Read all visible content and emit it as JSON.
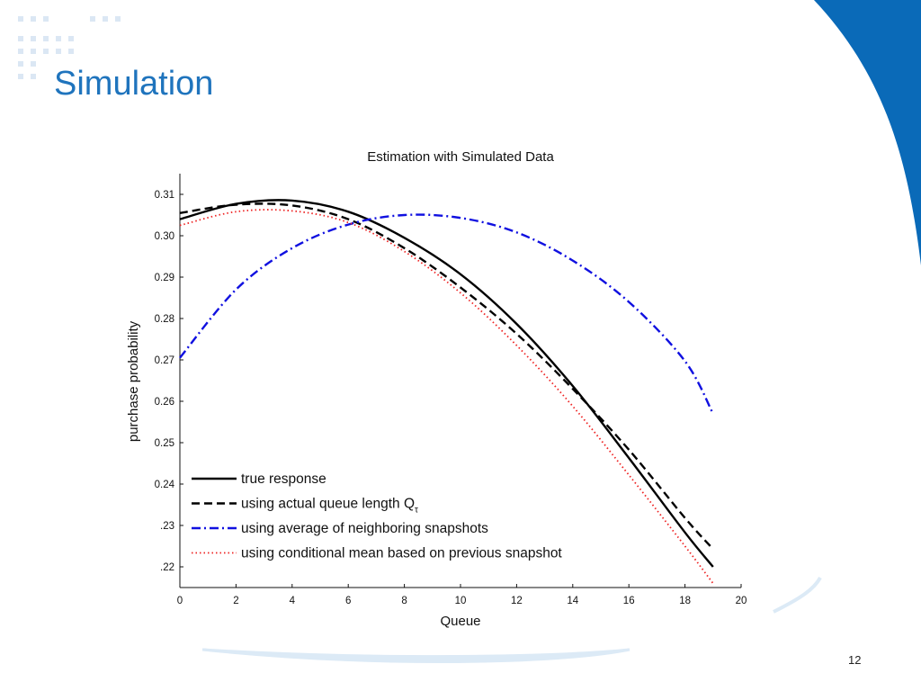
{
  "slide": {
    "title": "Simulation",
    "page_number": "12",
    "accent_color": "#1f74bd",
    "wave_color": "#0a6ab8"
  },
  "chart_data": {
    "type": "line",
    "title": "Estimation with Simulated Data",
    "xlabel": "Queue",
    "ylabel": "purchase probability",
    "xlim": [
      0,
      20
    ],
    "ylim": [
      0.215,
      0.315
    ],
    "xticks": [
      0,
      2,
      4,
      6,
      8,
      10,
      12,
      14,
      16,
      18,
      20
    ],
    "yticks": [
      {
        "value": 0.31,
        "label": "0.31"
      },
      {
        "value": 0.3,
        "label": "0.30"
      },
      {
        "value": 0.29,
        "label": "0.29"
      },
      {
        "value": 0.28,
        "label": "0.28"
      },
      {
        "value": 0.27,
        "label": "0.27"
      },
      {
        "value": 0.26,
        "label": "0.26"
      },
      {
        "value": 0.25,
        "label": "0.25"
      },
      {
        "value": 0.24,
        "label": "0.24"
      },
      {
        "value": 0.23,
        "label": ".23"
      },
      {
        "value": 0.22,
        "label": ".22"
      }
    ],
    "grid": false,
    "legend_position": "bottom-left",
    "x": [
      0,
      2,
      4,
      6,
      8,
      10,
      12,
      14,
      16,
      18,
      19
    ],
    "series": [
      {
        "name": "true response",
        "key": "true-response",
        "color": "#000000",
        "style": "solid",
        "values": [
          0.304,
          0.3077,
          0.3085,
          0.3058,
          0.2995,
          0.2907,
          0.2787,
          0.2637,
          0.2463,
          0.2283,
          0.22
        ]
      },
      {
        "name": "using actual queue length Q",
        "subscript": "τ",
        "key": "actual-queue-length",
        "color": "#000000",
        "style": "dashed",
        "values": [
          0.3055,
          0.3075,
          0.3073,
          0.304,
          0.297,
          0.2875,
          0.2763,
          0.263,
          0.2483,
          0.2318,
          0.2243
        ]
      },
      {
        "name": "using average of neighboring snapshots",
        "key": "neighboring-snapshots",
        "color": "#1010e0",
        "style": "dashdot",
        "values": [
          0.2705,
          0.287,
          0.297,
          0.3027,
          0.305,
          0.3043,
          0.3008,
          0.294,
          0.284,
          0.2697,
          0.257
        ]
      },
      {
        "name": "using conditional mean based on previous snapshot",
        "key": "conditional-mean",
        "color": "#ee2222",
        "style": "dotted",
        "values": [
          0.3025,
          0.3058,
          0.306,
          0.3032,
          0.2962,
          0.2862,
          0.2735,
          0.2588,
          0.2422,
          0.225,
          0.216
        ]
      }
    ]
  }
}
